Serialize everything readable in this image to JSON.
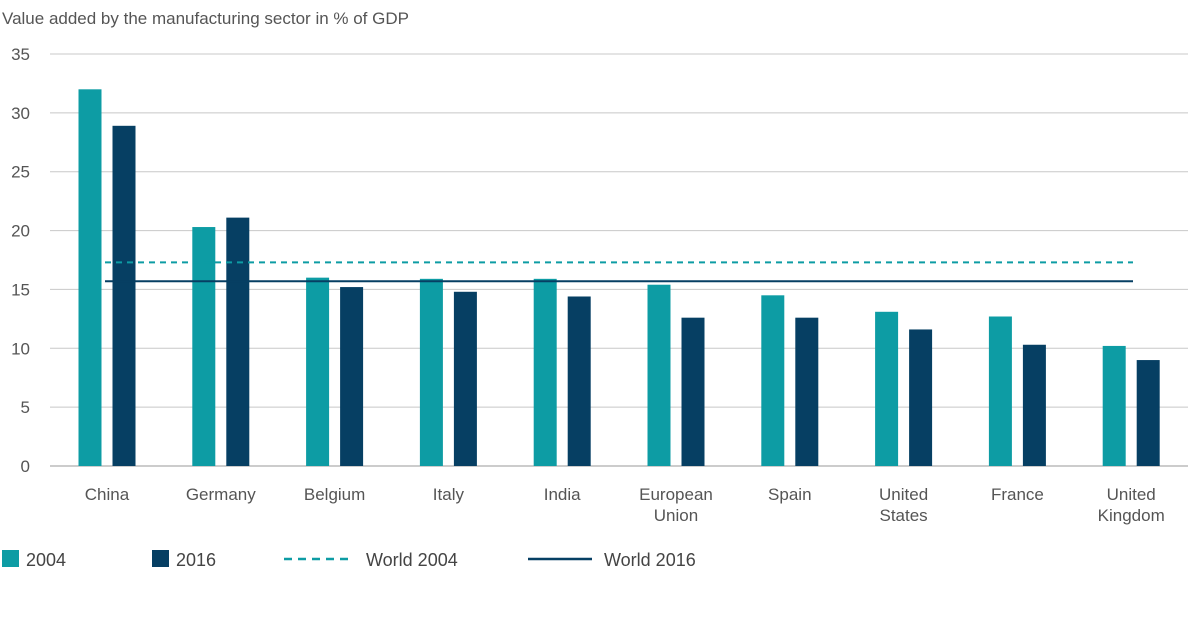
{
  "chart_data": {
    "type": "bar",
    "title": "Value added by the manufacturing sector in % of GDP",
    "xlabel": "",
    "ylabel": "",
    "ylim": [
      0,
      35
    ],
    "yticks": [
      "0",
      "5",
      "10",
      "15",
      "20",
      "25",
      "30",
      "35"
    ],
    "grid": "horizontal",
    "legend_position": "bottom-left",
    "categories": [
      [
        "China"
      ],
      [
        "Germany"
      ],
      [
        "Belgium"
      ],
      [
        "Italy"
      ],
      [
        "India"
      ],
      [
        "European",
        "Union"
      ],
      [
        "Spain"
      ],
      [
        "United",
        "States"
      ],
      [
        "France"
      ],
      [
        "United",
        "Kingdom"
      ]
    ],
    "series": [
      {
        "name": "2004",
        "color": "#0d9ca4",
        "values": [
          32.0,
          20.3,
          16.0,
          15.9,
          15.9,
          15.4,
          14.5,
          13.1,
          12.7,
          10.2
        ]
      },
      {
        "name": "2016",
        "color": "#063f63",
        "values": [
          28.9,
          21.1,
          15.2,
          14.8,
          14.4,
          12.6,
          12.6,
          11.6,
          10.3,
          9.0
        ]
      }
    ],
    "reference_lines": [
      {
        "name": "World 2004",
        "value": 17.3,
        "style": "dashed",
        "color": "#0d9ca4"
      },
      {
        "name": "World 2016",
        "value": 15.7,
        "style": "solid",
        "color": "#063f63"
      }
    ]
  }
}
